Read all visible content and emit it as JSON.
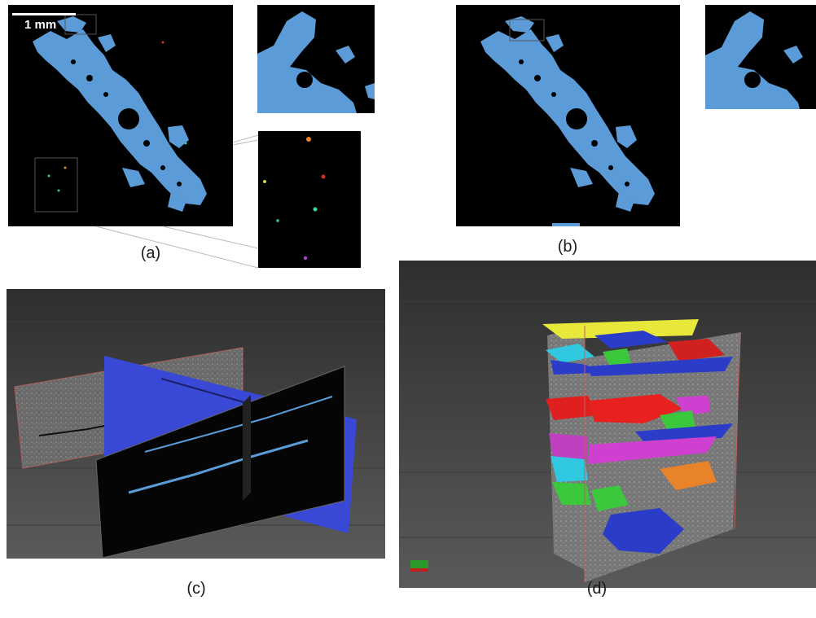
{
  "figure": {
    "scale_bar_label": "1 mm",
    "captions": {
      "a": "(a)",
      "b": "(b)",
      "c": "(c)",
      "d": "(d)"
    }
  },
  "colors": {
    "pore_blue": "#5b9bd8",
    "plane_blue": "#3a48d6",
    "background": "#000000",
    "scene_grey": "#4a4a4a"
  }
}
